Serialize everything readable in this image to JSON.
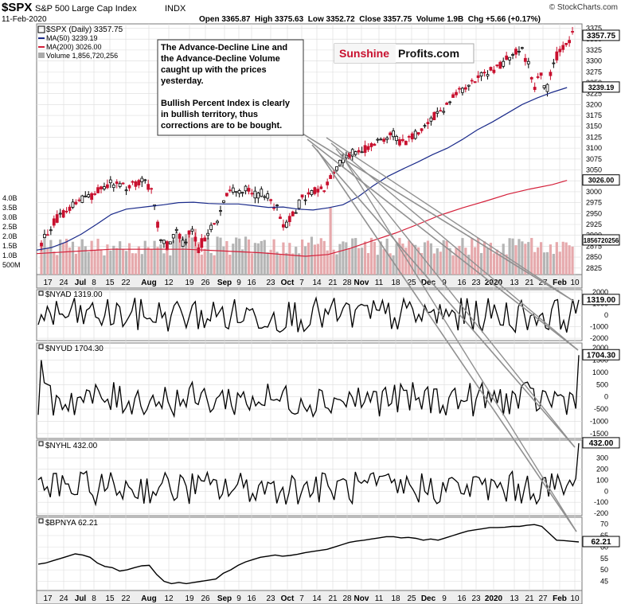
{
  "header": {
    "symbol": "$SPX",
    "name": "S&P 500 Large Cap Index",
    "exchange": "INDX",
    "date": "11-Feb-2020",
    "watermark": "© StockCharts.com",
    "quote": "Open 3365.87  High 3375.63  Low 3352.72  Close 3357.75  Volume 1.9B  Chg +5.66 (+0.17%)"
  },
  "legend": {
    "price": "$SPX (Daily) 3357.75",
    "ma50": "MA(50) 3239.19",
    "ma200": "MA(200) 3026.00",
    "volume": "Volume 1,856,720,256"
  },
  "annotation": {
    "lines": [
      "The Advance-Decline Line and",
      "the Advance-Decline Volume",
      "caught up with the prices",
      "yesterday.",
      "",
      "Bullish Percent Index is clearly",
      "in bullish territory, thus",
      "corrections are to be bought."
    ]
  },
  "logo": {
    "part1": "Sunshine",
    "part2": "Profits.com"
  },
  "colors": {
    "up": "#000000",
    "down": "#c8102e",
    "ma50": "#1a2a8a",
    "ma200": "#d4203a",
    "volume_up": "#b5b5b5",
    "volume_down": "#e6a9ac",
    "grid": "#dcdcdc",
    "arrow": "#909090"
  },
  "x_axis_labels": [
    "17",
    "24",
    "Jul",
    "8",
    "15",
    "22",
    "Aug",
    "12",
    "19",
    "26",
    "Sep",
    "9",
    "16",
    "23",
    "Oct",
    "7",
    "14",
    "21",
    "28",
    "Nov",
    "11",
    "18",
    "25",
    "Dec",
    "9",
    "16",
    "23",
    "2020",
    "13",
    "21",
    "27",
    "Feb",
    "10"
  ],
  "chart_data": [
    {
      "type": "candlestick",
      "title": "$SPX (Daily) 3357.75",
      "y_ticks": [
        2825,
        2850,
        2875,
        2900,
        2925,
        2950,
        2975,
        3000,
        3025,
        3050,
        3075,
        3100,
        3125,
        3150,
        3175,
        3200,
        3225,
        3250,
        3275,
        3300,
        3325,
        3350,
        3375
      ],
      "ylim": [
        2810,
        3385
      ],
      "last_value_labels": [
        "3357.75",
        "3239.19",
        "3026.00",
        "1856720256"
      ],
      "volume_ticks": [
        "4.0B",
        "3.5B",
        "3.0B",
        "2.5B",
        "2.0B",
        "1.5B",
        "1.0B",
        "500M"
      ],
      "series": [
        {
          "name": "MA(50) 3239.19",
          "points": [
            [
              0,
              2866
            ],
            [
              20,
              2872
            ],
            [
              40,
              2885
            ],
            [
              60,
              2903
            ],
            [
              80,
              2925
            ],
            [
              100,
              2948
            ],
            [
              120,
              2960
            ],
            [
              150,
              2966
            ],
            [
              170,
              2970
            ],
            [
              190,
              2975
            ],
            [
              210,
              2976
            ],
            [
              230,
              2973
            ],
            [
              250,
              2972
            ],
            [
              270,
              2972
            ],
            [
              290,
              2968
            ],
            [
              310,
              2964
            ],
            [
              330,
              2965
            ],
            [
              350,
              2960
            ],
            [
              370,
              2958
            ],
            [
              390,
              2963
            ],
            [
              410,
              2970
            ],
            [
              430,
              2988
            ],
            [
              450,
              3013
            ],
            [
              470,
              3035
            ],
            [
              490,
              3052
            ],
            [
              510,
              3068
            ],
            [
              530,
              3085
            ],
            [
              550,
              3100
            ],
            [
              570,
              3120
            ],
            [
              590,
              3142
            ],
            [
              610,
              3160
            ],
            [
              630,
              3180
            ],
            [
              650,
              3200
            ],
            [
              670,
              3215
            ],
            [
              690,
              3228
            ],
            [
              710,
              3239
            ]
          ]
        },
        {
          "name": "MA(200) 3026.00",
          "points": [
            [
              0,
              2858
            ],
            [
              100,
              2868
            ],
            [
              200,
              2868
            ],
            [
              300,
              2860
            ],
            [
              360,
              2852
            ],
            [
              390,
              2856
            ],
            [
              420,
              2870
            ],
            [
              450,
              2888
            ],
            [
              480,
              2905
            ],
            [
              510,
              2925
            ],
            [
              540,
              2946
            ],
            [
              570,
              2963
            ],
            [
              600,
              2978
            ],
            [
              630,
              2994
            ],
            [
              660,
              3006
            ],
            [
              690,
              3016
            ],
            [
              710,
              3026
            ]
          ]
        }
      ]
    },
    {
      "type": "line",
      "title": "$NYAD 1319.00",
      "y_ticks": [
        2000,
        1000,
        0,
        -1000,
        -2000
      ],
      "ylim": [
        -2200,
        2200
      ],
      "last_value": "1319.00"
    },
    {
      "type": "line",
      "title": "$NYUD 1704.30",
      "y_ticks": [
        2000,
        1500,
        1000,
        500,
        0,
        -500,
        -1000,
        -1500
      ],
      "ylim": [
        -1700,
        2200
      ],
      "last_value": "1704.30"
    },
    {
      "type": "line",
      "title": "$NYHL 432.00",
      "y_ticks": [
        300,
        200,
        100,
        0,
        -100,
        -200
      ],
      "ylim": [
        -220,
        460
      ],
      "last_value": "432.00"
    },
    {
      "type": "line",
      "title": "$BPNYA 62.21",
      "y_ticks": [
        70,
        65,
        60,
        55,
        50,
        45
      ],
      "ylim": [
        41,
        73
      ],
      "last_value": "62.21",
      "points": [
        [
          0,
          52.5
        ],
        [
          10,
          53
        ],
        [
          20,
          54
        ],
        [
          30,
          55
        ],
        [
          40,
          56
        ],
        [
          50,
          57
        ],
        [
          60,
          56.5
        ],
        [
          70,
          55.5
        ],
        [
          80,
          53
        ],
        [
          90,
          51.5
        ],
        [
          100,
          51
        ],
        [
          110,
          49.5
        ],
        [
          120,
          50
        ],
        [
          130,
          51
        ],
        [
          140,
          51.8
        ],
        [
          150,
          52
        ],
        [
          160,
          48
        ],
        [
          170,
          45
        ],
        [
          180,
          44
        ],
        [
          190,
          44.5
        ],
        [
          200,
          44
        ],
        [
          210,
          44.5
        ],
        [
          220,
          45
        ],
        [
          230,
          45.5
        ],
        [
          240,
          46
        ],
        [
          250,
          48.5
        ],
        [
          260,
          50
        ],
        [
          270,
          52
        ],
        [
          280,
          53.5
        ],
        [
          290,
          54.5
        ],
        [
          300,
          55.5
        ],
        [
          310,
          56
        ],
        [
          320,
          56.5
        ],
        [
          330,
          56
        ],
        [
          340,
          56.3
        ],
        [
          350,
          56.8
        ],
        [
          360,
          57.5
        ],
        [
          370,
          58
        ],
        [
          380,
          58.5
        ],
        [
          390,
          59
        ],
        [
          400,
          60
        ],
        [
          410,
          61
        ],
        [
          420,
          62
        ],
        [
          430,
          62.6
        ],
        [
          440,
          63
        ],
        [
          450,
          63.5
        ],
        [
          460,
          64
        ],
        [
          470,
          64.5
        ],
        [
          480,
          64.5
        ],
        [
          490,
          64
        ],
        [
          500,
          64.2
        ],
        [
          510,
          63.8
        ],
        [
          520,
          63
        ],
        [
          530,
          63.5
        ],
        [
          540,
          63
        ],
        [
          550,
          64
        ],
        [
          560,
          65
        ],
        [
          570,
          66
        ],
        [
          580,
          67
        ],
        [
          590,
          67.5
        ],
        [
          600,
          68
        ],
        [
          610,
          68.5
        ],
        [
          620,
          68.5
        ],
        [
          630,
          68.6
        ],
        [
          640,
          69
        ],
        [
          650,
          69
        ],
        [
          660,
          69.5
        ],
        [
          670,
          69.8
        ],
        [
          680,
          69
        ],
        [
          690,
          66
        ],
        [
          700,
          63
        ],
        [
          710,
          62.8
        ],
        [
          720,
          62.5
        ],
        [
          730,
          62.21
        ]
      ]
    }
  ]
}
